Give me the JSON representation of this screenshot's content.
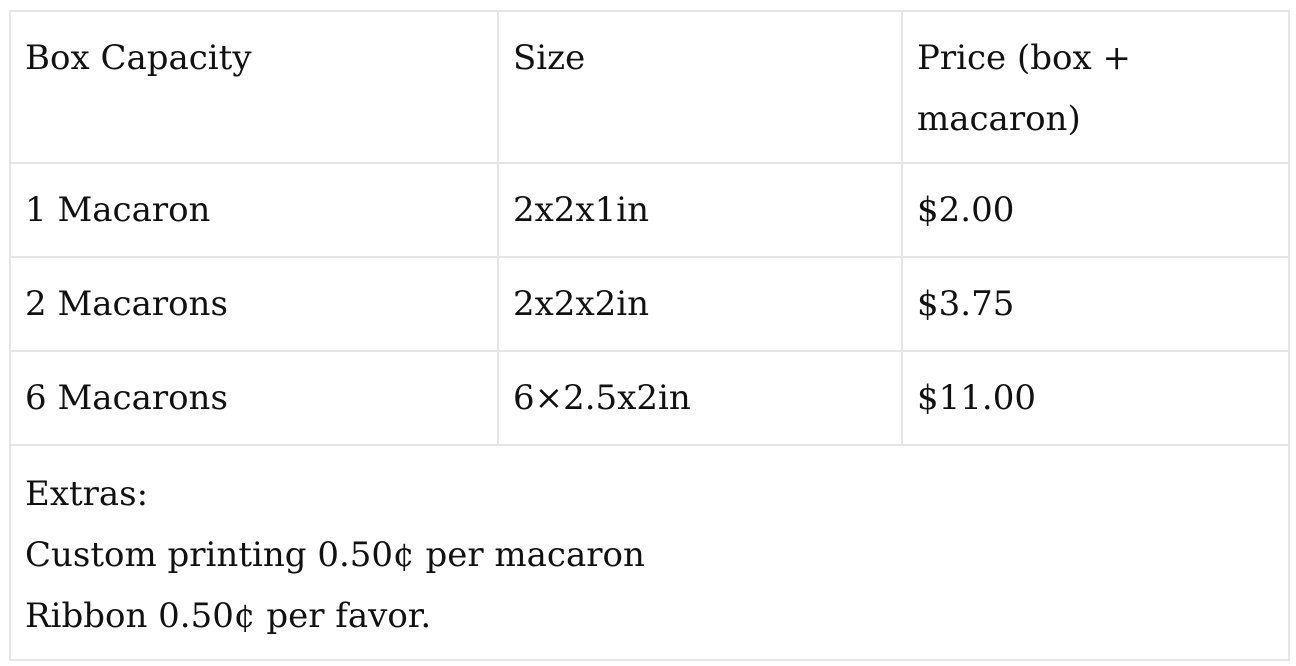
{
  "table": {
    "headers": [
      "Box Capacity",
      "Size",
      "Price (box + macaron)"
    ],
    "rows": [
      [
        "1 Macaron",
        "2x2x1in",
        "$2.00"
      ],
      [
        "2 Macarons",
        "2x2x2in",
        "$3.75"
      ],
      [
        "6 Macarons",
        "6×2.5x2in",
        "$11.00"
      ]
    ],
    "extras": {
      "title": "Extras:",
      "lines": [
        "Custom printing 0.50¢ per macaron",
        "Ribbon 0.50¢ per favor."
      ]
    }
  }
}
